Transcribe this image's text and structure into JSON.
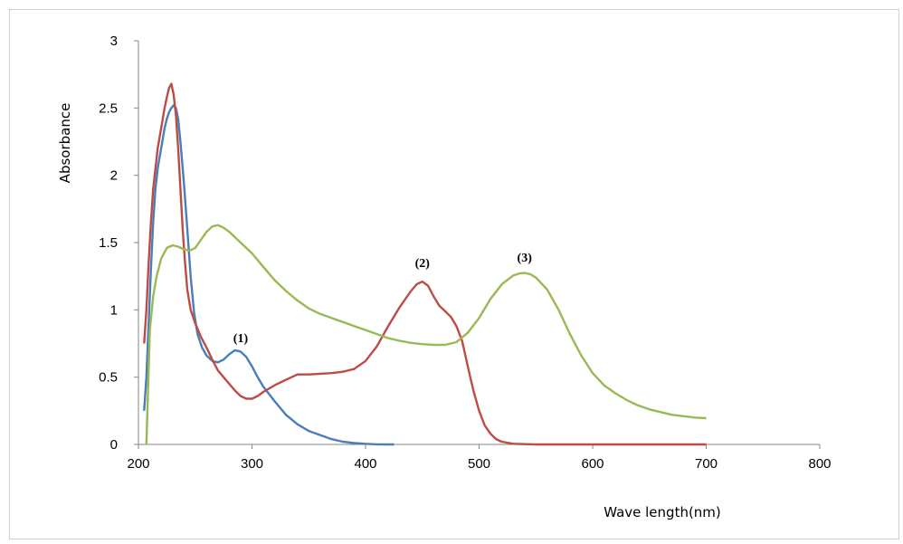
{
  "chart_data": {
    "type": "line",
    "title": "",
    "xlabel": "Wave length(nm)",
    "ylabel": "Absorbance",
    "xlim": [
      200,
      800
    ],
    "ylim": [
      0,
      3
    ],
    "x_ticks": [
      200,
      300,
      400,
      500,
      600,
      700,
      800
    ],
    "y_ticks": [
      0,
      0.5,
      1,
      1.5,
      2,
      2.5,
      3
    ],
    "y_tick_labels": [
      "0",
      "0.5",
      "1",
      "1.5",
      "2",
      "2.5",
      "3"
    ],
    "grid": false,
    "legend": "none",
    "series": [
      {
        "color": "#4a7ebb",
        "points": [
          [
            205,
            0.25
          ],
          [
            207,
            0.5
          ],
          [
            209,
            0.9
          ],
          [
            211,
            1.3
          ],
          [
            213,
            1.65
          ],
          [
            215,
            1.9
          ],
          [
            217,
            2.05
          ],
          [
            219,
            2.15
          ],
          [
            221,
            2.25
          ],
          [
            223,
            2.35
          ],
          [
            225,
            2.42
          ],
          [
            227,
            2.47
          ],
          [
            229,
            2.5
          ],
          [
            231,
            2.52
          ],
          [
            233,
            2.5
          ],
          [
            235,
            2.42
          ],
          [
            237,
            2.25
          ],
          [
            240,
            1.95
          ],
          [
            243,
            1.6
          ],
          [
            246,
            1.25
          ],
          [
            249,
            0.98
          ],
          [
            252,
            0.82
          ],
          [
            256,
            0.72
          ],
          [
            260,
            0.66
          ],
          [
            265,
            0.62
          ],
          [
            270,
            0.61
          ],
          [
            275,
            0.63
          ],
          [
            280,
            0.67
          ],
          [
            285,
            0.7
          ],
          [
            290,
            0.69
          ],
          [
            295,
            0.65
          ],
          [
            300,
            0.58
          ],
          [
            305,
            0.5
          ],
          [
            310,
            0.43
          ],
          [
            320,
            0.32
          ],
          [
            330,
            0.22
          ],
          [
            340,
            0.15
          ],
          [
            350,
            0.1
          ],
          [
            360,
            0.07
          ],
          [
            370,
            0.04
          ],
          [
            380,
            0.02
          ],
          [
            390,
            0.01
          ],
          [
            400,
            0.005
          ],
          [
            410,
            0.001
          ],
          [
            425,
            0.0
          ]
        ]
      },
      {
        "color": "#be4b48",
        "points": [
          [
            205,
            0.75
          ],
          [
            207,
            1.0
          ],
          [
            209,
            1.35
          ],
          [
            211,
            1.65
          ],
          [
            213,
            1.9
          ],
          [
            215,
            2.05
          ],
          [
            217,
            2.2
          ],
          [
            219,
            2.3
          ],
          [
            221,
            2.4
          ],
          [
            223,
            2.5
          ],
          [
            225,
            2.58
          ],
          [
            227,
            2.65
          ],
          [
            229,
            2.68
          ],
          [
            231,
            2.6
          ],
          [
            233,
            2.45
          ],
          [
            235,
            2.2
          ],
          [
            237,
            1.9
          ],
          [
            239,
            1.6
          ],
          [
            241,
            1.35
          ],
          [
            243,
            1.15
          ],
          [
            246,
            1.0
          ],
          [
            250,
            0.9
          ],
          [
            255,
            0.8
          ],
          [
            260,
            0.72
          ],
          [
            265,
            0.63
          ],
          [
            270,
            0.55
          ],
          [
            275,
            0.5
          ],
          [
            280,
            0.45
          ],
          [
            285,
            0.4
          ],
          [
            290,
            0.36
          ],
          [
            295,
            0.34
          ],
          [
            300,
            0.34
          ],
          [
            305,
            0.36
          ],
          [
            310,
            0.39
          ],
          [
            320,
            0.44
          ],
          [
            330,
            0.48
          ],
          [
            340,
            0.52
          ],
          [
            350,
            0.52
          ],
          [
            360,
            0.525
          ],
          [
            370,
            0.53
          ],
          [
            380,
            0.54
          ],
          [
            390,
            0.56
          ],
          [
            400,
            0.62
          ],
          [
            410,
            0.73
          ],
          [
            420,
            0.88
          ],
          [
            430,
            1.02
          ],
          [
            440,
            1.14
          ],
          [
            445,
            1.19
          ],
          [
            450,
            1.21
          ],
          [
            455,
            1.18
          ],
          [
            460,
            1.1
          ],
          [
            465,
            1.03
          ],
          [
            470,
            0.99
          ],
          [
            475,
            0.95
          ],
          [
            480,
            0.88
          ],
          [
            485,
            0.77
          ],
          [
            490,
            0.58
          ],
          [
            495,
            0.4
          ],
          [
            500,
            0.25
          ],
          [
            505,
            0.14
          ],
          [
            510,
            0.08
          ],
          [
            515,
            0.04
          ],
          [
            520,
            0.02
          ],
          [
            530,
            0.005
          ],
          [
            550,
            0.0
          ],
          [
            700,
            0.0
          ]
        ]
      },
      {
        "color": "#98b954",
        "points": [
          [
            207,
            0.0
          ],
          [
            210,
            0.85
          ],
          [
            213,
            1.1
          ],
          [
            216,
            1.25
          ],
          [
            220,
            1.38
          ],
          [
            225,
            1.46
          ],
          [
            230,
            1.48
          ],
          [
            235,
            1.47
          ],
          [
            240,
            1.45
          ],
          [
            245,
            1.44
          ],
          [
            250,
            1.46
          ],
          [
            255,
            1.52
          ],
          [
            260,
            1.58
          ],
          [
            265,
            1.62
          ],
          [
            270,
            1.63
          ],
          [
            275,
            1.61
          ],
          [
            280,
            1.58
          ],
          [
            290,
            1.5
          ],
          [
            300,
            1.42
          ],
          [
            310,
            1.32
          ],
          [
            320,
            1.22
          ],
          [
            330,
            1.14
          ],
          [
            340,
            1.07
          ],
          [
            350,
            1.01
          ],
          [
            360,
            0.97
          ],
          [
            370,
            0.94
          ],
          [
            380,
            0.91
          ],
          [
            390,
            0.88
          ],
          [
            400,
            0.85
          ],
          [
            410,
            0.82
          ],
          [
            420,
            0.79
          ],
          [
            430,
            0.77
          ],
          [
            440,
            0.755
          ],
          [
            450,
            0.745
          ],
          [
            460,
            0.74
          ],
          [
            470,
            0.74
          ],
          [
            480,
            0.76
          ],
          [
            490,
            0.83
          ],
          [
            500,
            0.94
          ],
          [
            510,
            1.08
          ],
          [
            520,
            1.19
          ],
          [
            530,
            1.255
          ],
          [
            535,
            1.27
          ],
          [
            540,
            1.275
          ],
          [
            545,
            1.265
          ],
          [
            550,
            1.24
          ],
          [
            560,
            1.15
          ],
          [
            570,
            1.0
          ],
          [
            580,
            0.82
          ],
          [
            590,
            0.66
          ],
          [
            600,
            0.53
          ],
          [
            610,
            0.44
          ],
          [
            620,
            0.38
          ],
          [
            630,
            0.33
          ],
          [
            640,
            0.29
          ],
          [
            650,
            0.26
          ],
          [
            660,
            0.24
          ],
          [
            670,
            0.22
          ],
          [
            680,
            0.21
          ],
          [
            690,
            0.2
          ],
          [
            700,
            0.195
          ]
        ]
      }
    ],
    "annotations": [
      {
        "text": "(1)",
        "x": 290,
        "y": 0.76
      },
      {
        "text": "(2)",
        "x": 450,
        "y": 1.32
      },
      {
        "text": "(3)",
        "x": 540,
        "y": 1.36
      }
    ]
  }
}
